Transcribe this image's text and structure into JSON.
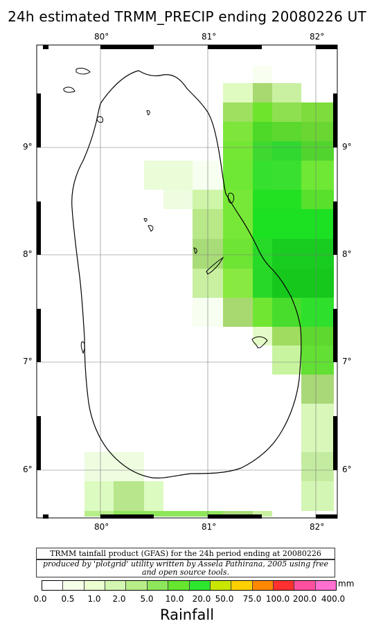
{
  "title": "24h estimated TRMM_PRECIP  ending 20080226 UT",
  "map": {
    "lon_labels": [
      "80°",
      "81°",
      "82°"
    ],
    "lat_labels": [
      "9°",
      "8°",
      "7°",
      "6°"
    ],
    "extent": {
      "lon": [
        79.5,
        82.2
      ],
      "lat": [
        5.6,
        9.9
      ]
    }
  },
  "footer": {
    "line1": "TRMM tainfall product (GFAS) for the 24h period ending at 20080226",
    "line2": "produced by 'plotgrid' utility written by Assela Pathirana, 2005 using free and open source tools."
  },
  "legend": {
    "unit": "mm",
    "ticks": [
      "0.0",
      "0.5",
      "1.0",
      "2.0",
      "5.0",
      "10.0",
      "20.0",
      "50.0",
      "75.0",
      "100.0",
      "200.0",
      "400.0"
    ],
    "colors": [
      "#ffffff",
      "#f4ffe8",
      "#ebffd0",
      "#d3f7b0",
      "#b8ee88",
      "#8ee65a",
      "#66e62e",
      "#2ee62e",
      "#c8e600",
      "#ffd000",
      "#ff8800",
      "#ff3030",
      "#ff50a0",
      "#ff70d0"
    ],
    "label": "Rainfall"
  }
}
